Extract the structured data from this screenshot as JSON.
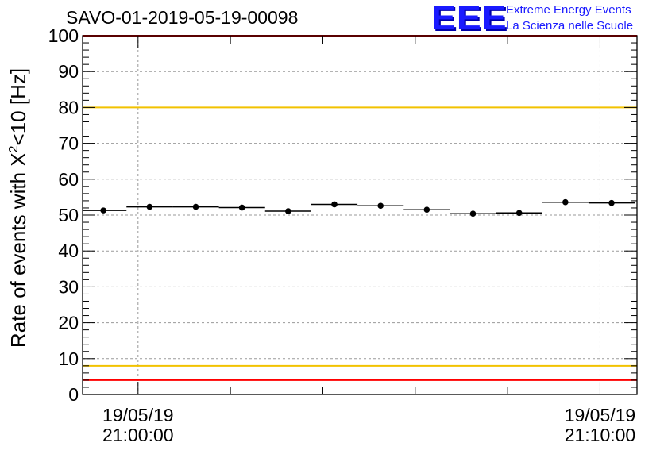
{
  "header": {
    "run_title": "SAVO-01-2019-05-19-00098"
  },
  "logo": {
    "mark": "EEE",
    "line1": "Extreme Energy Events",
    "line2": "La Scienza nelle Scuole",
    "color": "#1a1aff"
  },
  "chart_data": {
    "type": "scatter",
    "title": "SAVO-01-2019-05-19-00098",
    "ylabel_main": "Rate of events with X",
    "ylabel_sup": "2",
    "ylabel_tail": "<10 [Hz]",
    "xlabel": "",
    "ylim": [
      0,
      100
    ],
    "y_ticks": [
      0,
      10,
      20,
      30,
      40,
      50,
      60,
      70,
      80,
      90,
      100
    ],
    "x_ticks": [
      {
        "date": "19/05/19",
        "time": "21:00:00",
        "minute": 0
      },
      {
        "date": "19/05/19",
        "time": "21:10:00",
        "minute": 10
      }
    ],
    "x_range_minutes": [
      -1.2,
      10.8
    ],
    "grid": true,
    "series": [
      {
        "x_minutes": [
          -0.75,
          0.25,
          1.25,
          2.25,
          3.25,
          4.25,
          5.25,
          6.25,
          7.25,
          8.25,
          9.25,
          10.25
        ],
        "bin_halfwidth_minutes": 0.5,
        "values": [
          51.3,
          52.3,
          52.3,
          52.1,
          51.1,
          53.0,
          52.6,
          51.5,
          50.4,
          50.6,
          53.6,
          53.4
        ]
      }
    ],
    "reference_lines": [
      {
        "y": 100,
        "color": "#ff0000"
      },
      {
        "y": 80,
        "color": "#f2c200"
      },
      {
        "y": 8,
        "color": "#f2c200"
      },
      {
        "y": 4,
        "color": "#ff0000"
      }
    ]
  }
}
